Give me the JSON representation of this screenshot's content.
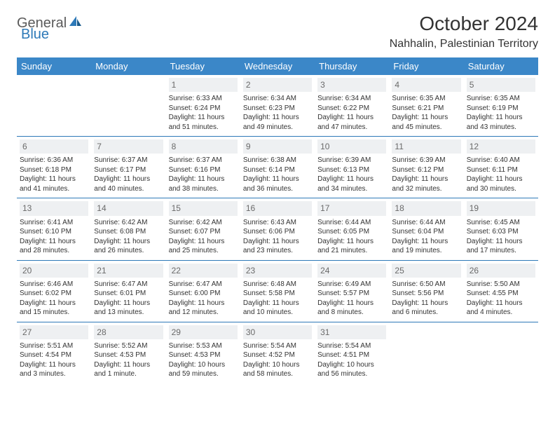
{
  "brand": {
    "name1": "General",
    "name2": "Blue"
  },
  "title": "October 2024",
  "location": "Nahhalin, Palestinian Territory",
  "colors": {
    "header_bg": "#3b87c8",
    "header_text": "#ffffff",
    "daynum_bg": "#eef0f2",
    "daynum_text": "#6a6a6a",
    "border": "#2d79b8",
    "brand_gray": "#5a5a5a",
    "brand_blue": "#2d79b8"
  },
  "typography": {
    "title_fontsize": 28,
    "location_fontsize": 16,
    "dayheader_fontsize": 13,
    "cell_fontsize": 10
  },
  "day_headers": [
    "Sunday",
    "Monday",
    "Tuesday",
    "Wednesday",
    "Thursday",
    "Friday",
    "Saturday"
  ],
  "weeks": [
    [
      {
        "num": "",
        "text": ""
      },
      {
        "num": "",
        "text": ""
      },
      {
        "num": "1",
        "text": "Sunrise: 6:33 AM\nSunset: 6:24 PM\nDaylight: 11 hours and 51 minutes."
      },
      {
        "num": "2",
        "text": "Sunrise: 6:34 AM\nSunset: 6:23 PM\nDaylight: 11 hours and 49 minutes."
      },
      {
        "num": "3",
        "text": "Sunrise: 6:34 AM\nSunset: 6:22 PM\nDaylight: 11 hours and 47 minutes."
      },
      {
        "num": "4",
        "text": "Sunrise: 6:35 AM\nSunset: 6:21 PM\nDaylight: 11 hours and 45 minutes."
      },
      {
        "num": "5",
        "text": "Sunrise: 6:35 AM\nSunset: 6:19 PM\nDaylight: 11 hours and 43 minutes."
      }
    ],
    [
      {
        "num": "6",
        "text": "Sunrise: 6:36 AM\nSunset: 6:18 PM\nDaylight: 11 hours and 41 minutes."
      },
      {
        "num": "7",
        "text": "Sunrise: 6:37 AM\nSunset: 6:17 PM\nDaylight: 11 hours and 40 minutes."
      },
      {
        "num": "8",
        "text": "Sunrise: 6:37 AM\nSunset: 6:16 PM\nDaylight: 11 hours and 38 minutes."
      },
      {
        "num": "9",
        "text": "Sunrise: 6:38 AM\nSunset: 6:14 PM\nDaylight: 11 hours and 36 minutes."
      },
      {
        "num": "10",
        "text": "Sunrise: 6:39 AM\nSunset: 6:13 PM\nDaylight: 11 hours and 34 minutes."
      },
      {
        "num": "11",
        "text": "Sunrise: 6:39 AM\nSunset: 6:12 PM\nDaylight: 11 hours and 32 minutes."
      },
      {
        "num": "12",
        "text": "Sunrise: 6:40 AM\nSunset: 6:11 PM\nDaylight: 11 hours and 30 minutes."
      }
    ],
    [
      {
        "num": "13",
        "text": "Sunrise: 6:41 AM\nSunset: 6:10 PM\nDaylight: 11 hours and 28 minutes."
      },
      {
        "num": "14",
        "text": "Sunrise: 6:42 AM\nSunset: 6:08 PM\nDaylight: 11 hours and 26 minutes."
      },
      {
        "num": "15",
        "text": "Sunrise: 6:42 AM\nSunset: 6:07 PM\nDaylight: 11 hours and 25 minutes."
      },
      {
        "num": "16",
        "text": "Sunrise: 6:43 AM\nSunset: 6:06 PM\nDaylight: 11 hours and 23 minutes."
      },
      {
        "num": "17",
        "text": "Sunrise: 6:44 AM\nSunset: 6:05 PM\nDaylight: 11 hours and 21 minutes."
      },
      {
        "num": "18",
        "text": "Sunrise: 6:44 AM\nSunset: 6:04 PM\nDaylight: 11 hours and 19 minutes."
      },
      {
        "num": "19",
        "text": "Sunrise: 6:45 AM\nSunset: 6:03 PM\nDaylight: 11 hours and 17 minutes."
      }
    ],
    [
      {
        "num": "20",
        "text": "Sunrise: 6:46 AM\nSunset: 6:02 PM\nDaylight: 11 hours and 15 minutes."
      },
      {
        "num": "21",
        "text": "Sunrise: 6:47 AM\nSunset: 6:01 PM\nDaylight: 11 hours and 13 minutes."
      },
      {
        "num": "22",
        "text": "Sunrise: 6:47 AM\nSunset: 6:00 PM\nDaylight: 11 hours and 12 minutes."
      },
      {
        "num": "23",
        "text": "Sunrise: 6:48 AM\nSunset: 5:58 PM\nDaylight: 11 hours and 10 minutes."
      },
      {
        "num": "24",
        "text": "Sunrise: 6:49 AM\nSunset: 5:57 PM\nDaylight: 11 hours and 8 minutes."
      },
      {
        "num": "25",
        "text": "Sunrise: 6:50 AM\nSunset: 5:56 PM\nDaylight: 11 hours and 6 minutes."
      },
      {
        "num": "26",
        "text": "Sunrise: 5:50 AM\nSunset: 4:55 PM\nDaylight: 11 hours and 4 minutes."
      }
    ],
    [
      {
        "num": "27",
        "text": "Sunrise: 5:51 AM\nSunset: 4:54 PM\nDaylight: 11 hours and 3 minutes."
      },
      {
        "num": "28",
        "text": "Sunrise: 5:52 AM\nSunset: 4:53 PM\nDaylight: 11 hours and 1 minute."
      },
      {
        "num": "29",
        "text": "Sunrise: 5:53 AM\nSunset: 4:53 PM\nDaylight: 10 hours and 59 minutes."
      },
      {
        "num": "30",
        "text": "Sunrise: 5:54 AM\nSunset: 4:52 PM\nDaylight: 10 hours and 58 minutes."
      },
      {
        "num": "31",
        "text": "Sunrise: 5:54 AM\nSunset: 4:51 PM\nDaylight: 10 hours and 56 minutes."
      },
      {
        "num": "",
        "text": ""
      },
      {
        "num": "",
        "text": ""
      }
    ]
  ]
}
